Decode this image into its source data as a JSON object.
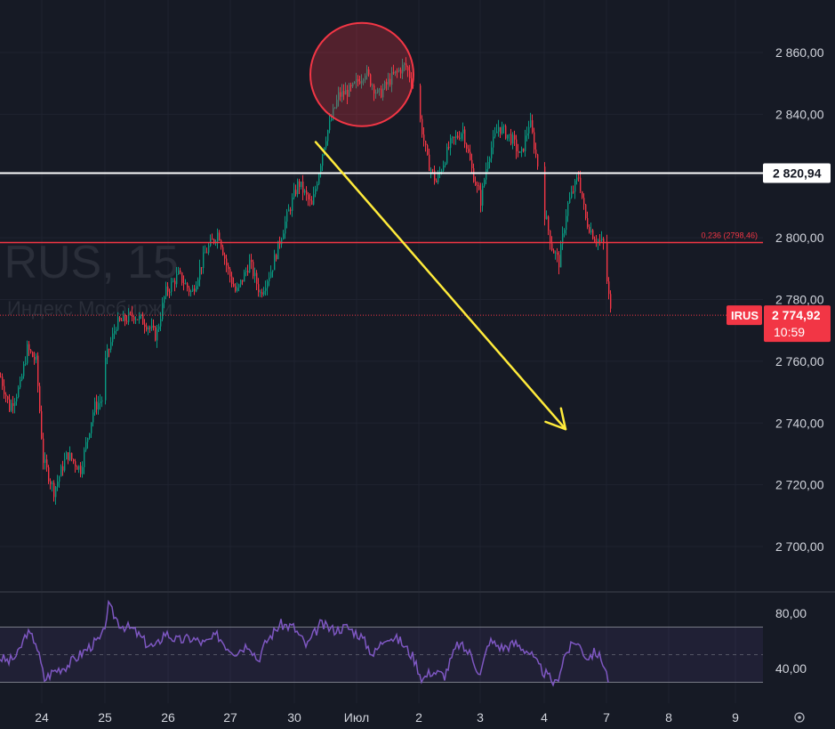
{
  "chart_data": {
    "type": "candlestick",
    "symbol": "IRUS",
    "watermark_symbol": "IRUS, 15",
    "watermark_name": "Индекс Мосбиржи",
    "price_axis": {
      "ticks": [
        2860,
        2840,
        2800,
        2780,
        2760,
        2740,
        2720,
        2700
      ],
      "tick_labels": [
        "2 860,00",
        "2 840,00",
        "2 800,00",
        "2 780,00",
        "2 760,00",
        "2 740,00",
        "2 720,00",
        "2 700,00"
      ],
      "range": [
        2687,
        2872
      ]
    },
    "date_axis": {
      "labels": [
        "24",
        "25",
        "26",
        "27",
        "30",
        "Июл",
        "2",
        "3",
        "4",
        "7",
        "8",
        "9"
      ]
    },
    "current_price": {
      "value": 2774.92,
      "label": "2 774,92",
      "countdown": "10:59",
      "symbol_tag": "IRUS",
      "color": "#f23645"
    },
    "horizontal_line": {
      "value": 2820.94,
      "label": "2 820,94",
      "color": "#ffffff"
    },
    "fib_line": {
      "value": 2798.46,
      "label": "0,236 (2798,46)",
      "color": "#f23645"
    },
    "annotations": {
      "arrow": {
        "from_date": "30",
        "from_price": 2831,
        "to_date": "4",
        "to_price": 2738,
        "color": "#ffeb3b"
      },
      "circle": {
        "center_date": "Июл",
        "center_price": 2852,
        "color": "#f23645"
      }
    },
    "price_path": [
      [
        0,
        2755
      ],
      [
        10,
        2745
      ],
      [
        22,
        2752
      ],
      [
        30,
        2764
      ],
      [
        40,
        2760
      ],
      [
        48,
        2728
      ],
      [
        60,
        2718
      ],
      [
        75,
        2730
      ],
      [
        90,
        2725
      ],
      [
        105,
        2745
      ],
      [
        115,
        2748
      ],
      [
        118,
        2760
      ],
      [
        130,
        2772
      ],
      [
        150,
        2775
      ],
      [
        165,
        2772
      ],
      [
        175,
        2768
      ],
      [
        185,
        2782
      ],
      [
        200,
        2788
      ],
      [
        215,
        2782
      ],
      [
        230,
        2795
      ],
      [
        245,
        2802
      ],
      [
        255,
        2790
      ],
      [
        265,
        2782
      ],
      [
        280,
        2792
      ],
      [
        292,
        2782
      ],
      [
        305,
        2790
      ],
      [
        320,
        2805
      ],
      [
        335,
        2818
      ],
      [
        350,
        2810
      ],
      [
        365,
        2832
      ],
      [
        380,
        2846
      ],
      [
        395,
        2848
      ],
      [
        410,
        2854
      ],
      [
        425,
        2846
      ],
      [
        440,
        2852
      ],
      [
        455,
        2856
      ],
      [
        465,
        2849
      ],
      [
        472,
        2838
      ],
      [
        480,
        2825
      ],
      [
        490,
        2818
      ],
      [
        505,
        2830
      ],
      [
        520,
        2835
      ],
      [
        530,
        2822
      ],
      [
        540,
        2812
      ],
      [
        548,
        2826
      ],
      [
        560,
        2836
      ],
      [
        575,
        2832
      ],
      [
        585,
        2826
      ],
      [
        595,
        2838
      ],
      [
        605,
        2822
      ],
      [
        612,
        2808
      ],
      [
        620,
        2797
      ],
      [
        628,
        2792
      ],
      [
        637,
        2810
      ],
      [
        650,
        2820
      ],
      [
        658,
        2806
      ],
      [
        668,
        2800
      ],
      [
        678,
        2798
      ],
      [
        682,
        2786
      ],
      [
        686,
        2776
      ]
    ],
    "rsi": {
      "tick_labels": [
        "80,00",
        "40,00"
      ],
      "ticks": [
        80,
        40
      ],
      "upper": 70,
      "lower": 30,
      "mid": 50,
      "range": [
        22,
        92
      ],
      "path": [
        [
          0,
          48
        ],
        [
          10,
          45
        ],
        [
          20,
          50
        ],
        [
          30,
          66
        ],
        [
          40,
          60
        ],
        [
          50,
          32
        ],
        [
          60,
          38
        ],
        [
          75,
          42
        ],
        [
          90,
          50
        ],
        [
          105,
          58
        ],
        [
          115,
          62
        ],
        [
          122,
          85
        ],
        [
          135,
          72
        ],
        [
          150,
          68
        ],
        [
          165,
          58
        ],
        [
          175,
          55
        ],
        [
          185,
          66
        ],
        [
          200,
          60
        ],
        [
          215,
          62
        ],
        [
          230,
          58
        ],
        [
          245,
          64
        ],
        [
          255,
          56
        ],
        [
          265,
          52
        ],
        [
          280,
          58
        ],
        [
          290,
          46
        ],
        [
          300,
          60
        ],
        [
          315,
          72
        ],
        [
          330,
          70
        ],
        [
          345,
          56
        ],
        [
          360,
          72
        ],
        [
          375,
          68
        ],
        [
          390,
          70
        ],
        [
          405,
          64
        ],
        [
          420,
          50
        ],
        [
          435,
          64
        ],
        [
          450,
          60
        ],
        [
          465,
          48
        ],
        [
          475,
          32
        ],
        [
          485,
          38
        ],
        [
          500,
          35
        ],
        [
          515,
          58
        ],
        [
          530,
          50
        ],
        [
          540,
          35
        ],
        [
          550,
          60
        ],
        [
          565,
          55
        ],
        [
          580,
          58
        ],
        [
          595,
          52
        ],
        [
          605,
          42
        ],
        [
          615,
          35
        ],
        [
          625,
          28
        ],
        [
          635,
          50
        ],
        [
          648,
          60
        ],
        [
          660,
          48
        ],
        [
          670,
          52
        ],
        [
          678,
          45
        ],
        [
          685,
          30
        ]
      ]
    },
    "grid": true
  }
}
